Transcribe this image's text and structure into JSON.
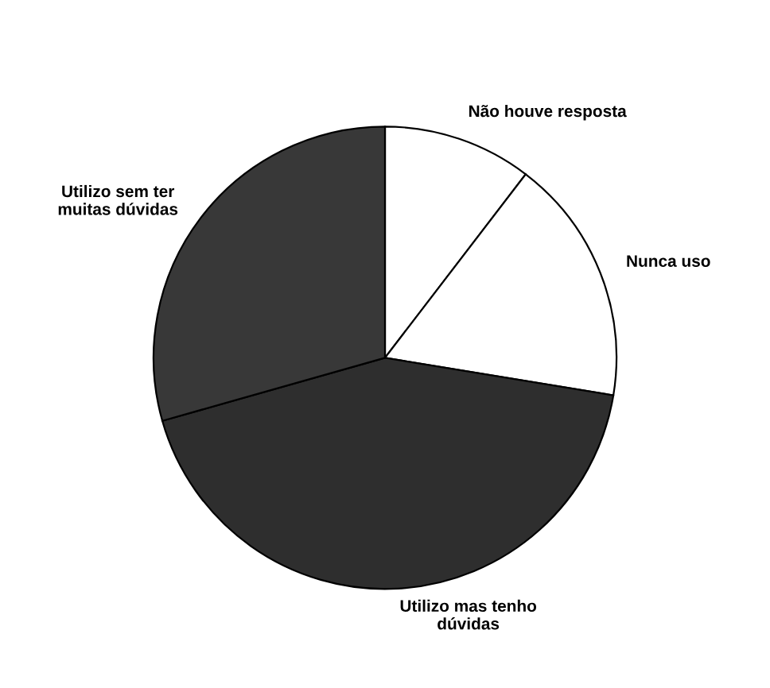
{
  "chart_data": {
    "type": "pie",
    "categories": [
      "Não houve resposta",
      "Nunca uso",
      "Utilizo mas tenho\ndúvidas",
      "Utilizo sem ter\nmuitas dúvidas"
    ],
    "values": [
      10.4,
      17.2,
      43,
      29.4
    ],
    "colors": [
      "#ffffff",
      "#ffffff",
      "#2e2e2e",
      "#383838"
    ]
  }
}
